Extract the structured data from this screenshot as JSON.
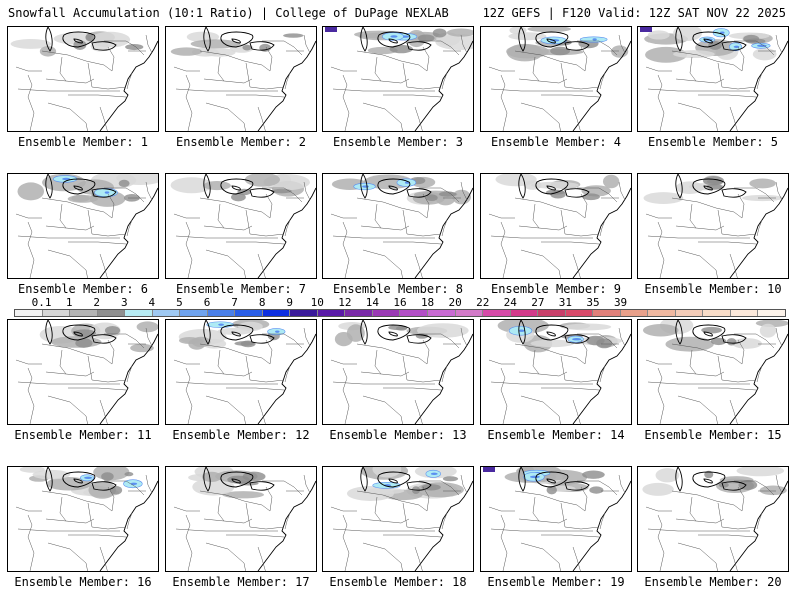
{
  "header": {
    "title": "Snowfall Accumulation (10:1 Ratio) | College of DuPage NEXLAB",
    "run_info": "12Z GEFS | F120 Valid: 12Z SAT NOV 22 2025"
  },
  "colorbar": {
    "labels": [
      "0.1",
      "1",
      "2",
      "3",
      "4",
      "5",
      "6",
      "7",
      "8",
      "9",
      "10",
      "12",
      "14",
      "16",
      "18",
      "20",
      "22",
      "24",
      "27",
      "31",
      "35",
      "39"
    ],
    "colors": [
      "#f2f2f2",
      "#d6d6d6",
      "#b4b4b4",
      "#8f8f8f",
      "#b7ecf4",
      "#9fc9f2",
      "#6fa3ee",
      "#4a7fe8",
      "#2a5ee6",
      "#0d2fe0",
      "#3a1a9a",
      "#5a1aa8",
      "#7a2aa8",
      "#9a3ab4",
      "#b24ec6",
      "#c86ad2",
      "#d27ac8",
      "#d64aa8",
      "#d23a8a",
      "#c8406a",
      "#d84a6a",
      "#e0807a",
      "#e8a08a",
      "#f0b8a0",
      "#f4ccb8",
      "#f8dcc8",
      "#fbe8da",
      "#fdf3ea"
    ]
  },
  "ensemble": {
    "label_prefix": "Ensemble Member:",
    "members": [
      1,
      2,
      3,
      4,
      5,
      6,
      7,
      8,
      9,
      10,
      11,
      12,
      13,
      14,
      15,
      16,
      17,
      18,
      19,
      20
    ],
    "member_labels": [
      "Ensemble Member: 1",
      "Ensemble Member: 2",
      "Ensemble Member: 3",
      "Ensemble Member: 4",
      "Ensemble Member: 5",
      "Ensemble Member: 6",
      "Ensemble Member: 7",
      "Ensemble Member: 8",
      "Ensemble Member: 9",
      "Ensemble Member: 10",
      "Ensemble Member: 11",
      "Ensemble Member: 12",
      "Ensemble Member: 13",
      "Ensemble Member: 14",
      "Ensemble Member: 15",
      "Ensemble Member: 16",
      "Ensemble Member: 17",
      "Ensemble Member: 18",
      "Ensemble Member: 19",
      "Ensemble Member: 20"
    ],
    "snow_intensity": [
      "low",
      "low",
      "moderate",
      "moderate",
      "heavy",
      "moderate",
      "low",
      "moderate",
      "low",
      "low",
      "low",
      "moderate",
      "low",
      "moderate",
      "low",
      "moderate",
      "low",
      "moderate",
      "moderate",
      "low"
    ]
  },
  "colors": {
    "snow_light": "#d9d9d9",
    "snow_mid": "#b0b0b0",
    "snow_dark": "#8c8c8c",
    "snow_cyan": "#aeeaf4",
    "snow_blue": "#5b8ff0",
    "snow_purple": "#4a2aa0"
  }
}
